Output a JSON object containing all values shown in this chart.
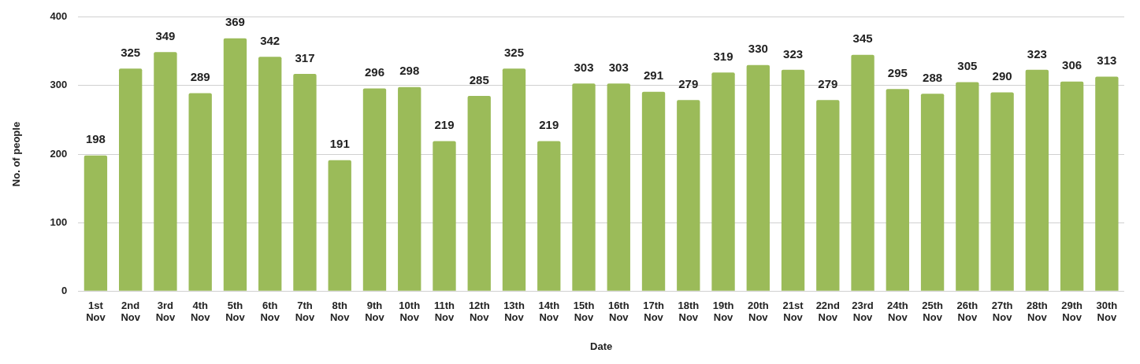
{
  "chart_data": {
    "type": "bar",
    "xlabel": "Date",
    "ylabel": "No. of people",
    "categories": [
      "1st Nov",
      "2nd Nov",
      "3rd Nov",
      "4th Nov",
      "5th Nov",
      "6th Nov",
      "7th Nov",
      "8th Nov",
      "9th Nov",
      "10th Nov",
      "11th Nov",
      "12th Nov",
      "13th Nov",
      "14th Nov",
      "15th Nov",
      "16th Nov",
      "17th Nov",
      "18th Nov",
      "19th Nov",
      "20th Nov",
      "21st Nov",
      "22nd Nov",
      "23rd Nov",
      "24th Nov",
      "25th Nov",
      "26th Nov",
      "27th Nov",
      "28th Nov",
      "29th Nov",
      "30th Nov"
    ],
    "values": [
      198,
      325,
      349,
      289,
      369,
      342,
      317,
      191,
      296,
      298,
      219,
      285,
      325,
      219,
      303,
      303,
      291,
      279,
      319,
      330,
      323,
      279,
      345,
      295,
      288,
      305,
      290,
      323,
      306,
      313
    ],
    "color": "#9bbb59",
    "ylim": [
      0,
      400
    ],
    "yticks": [
      0,
      100,
      200,
      300,
      400
    ],
    "grid": "y",
    "data_labels": true,
    "legend": false
  }
}
